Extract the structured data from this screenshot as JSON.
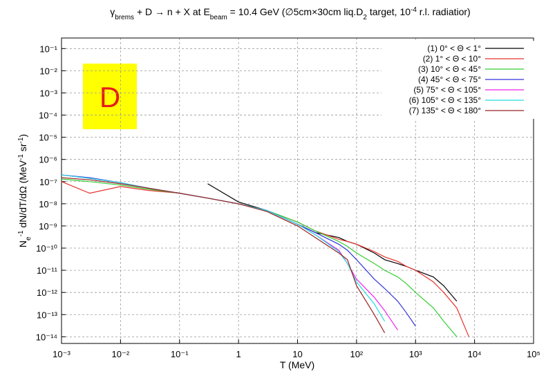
{
  "chart_data": {
    "type": "line",
    "title": [
      {
        "text": "γ"
      },
      {
        "text": "brems",
        "shift": "sub"
      },
      {
        "text": " + D → n + X   at  E"
      },
      {
        "text": "beam",
        "shift": "sub"
      },
      {
        "text": " = 10.4 GeV (∅5cm×30cm liq.D"
      },
      {
        "text": "2",
        "shift": "sub"
      },
      {
        "text": " target, 10"
      },
      {
        "text": "-4",
        "shift": "sup"
      },
      {
        "text": " r.l. radiatior)"
      }
    ],
    "x_label": "T (MeV)",
    "y_label": [
      {
        "text": "N"
      },
      {
        "text": "e",
        "shift": "sub"
      },
      {
        "text": "-1",
        "shift": "sup"
      },
      {
        "text": " dN/dT/dΩ (MeV"
      },
      {
        "text": "-1",
        "shift": "sup"
      },
      {
        "text": " sr"
      },
      {
        "text": "-1",
        "shift": "sup"
      },
      {
        "text": ")"
      }
    ],
    "annotation": "D",
    "xscale": "log",
    "yscale": "log",
    "grid": true,
    "legend": "top right",
    "xlim": [
      0.001,
      100000
    ],
    "xticks": [
      {
        "value": 0.001,
        "label": "10⁻³"
      },
      {
        "value": 0.01,
        "label": "10⁻²"
      },
      {
        "value": 0.1,
        "label": "10⁻¹"
      },
      1,
      10,
      {
        "value": 100,
        "label": "10²"
      },
      {
        "value": 1000,
        "label": "10³"
      },
      {
        "value": 10000,
        "label": "10⁴"
      },
      {
        "value": 100000,
        "label": "10⁵"
      }
    ],
    "ylim": [
      5e-15,
      0.3
    ],
    "yticks": [
      {
        "value": 0.1,
        "label": "10⁻¹"
      },
      {
        "value": 0.01,
        "label": "10⁻²"
      },
      {
        "value": 0.001,
        "label": "10⁻³"
      },
      {
        "value": 0.0001,
        "label": "10⁻⁴"
      },
      {
        "value": 1e-05,
        "label": "10⁻⁵"
      },
      {
        "value": 1e-06,
        "label": "10⁻⁶"
      },
      {
        "value": 1e-07,
        "label": "10⁻⁷"
      },
      {
        "value": 1e-08,
        "label": "10⁻⁸"
      },
      {
        "value": 1e-09,
        "label": "10⁻⁹"
      },
      {
        "value": 1e-10,
        "label": "10⁻¹⁰"
      },
      {
        "value": 1e-11,
        "label": "10⁻¹¹"
      },
      {
        "value": 1e-12,
        "label": "10⁻¹²"
      },
      {
        "value": 1e-13,
        "label": "10⁻¹³"
      },
      {
        "value": 1e-14,
        "label": "10⁻¹⁴"
      }
    ],
    "x": [
      0.001,
      0.003,
      0.01,
      0.03,
      0.1,
      0.3,
      1,
      3,
      10,
      20,
      50,
      70,
      100,
      200,
      300,
      500,
      700,
      1000,
      2000,
      3000,
      5000,
      8000
    ],
    "series": [
      {
        "name": "(1) 0° < Θ < 1°",
        "color": "#000000",
        "values": [
          null,
          null,
          null,
          null,
          null,
          8e-08,
          1.2e-08,
          5e-09,
          1.2e-09,
          5e-10,
          3e-10,
          2e-10,
          1.5e-10,
          6e-11,
          3e-11,
          2e-11,
          1.5e-11,
          1e-11,
          5e-12,
          2e-12,
          4e-13,
          null
        ]
      },
      {
        "name": "(2) 1° < Θ < 10°",
        "color": "#e8302a",
        "values": [
          1e-07,
          3e-08,
          6e-08,
          4e-08,
          3e-08,
          1.8e-08,
          1e-08,
          5e-09,
          1.5e-09,
          6e-10,
          2.5e-10,
          2e-10,
          1.5e-10,
          7e-11,
          4e-11,
          2.5e-11,
          1.5e-11,
          1e-11,
          3e-12,
          1e-12,
          2e-13,
          1e-14
        ]
      },
      {
        "name": "(3) 10° < Θ < 45°",
        "color": "#33cc33",
        "values": [
          1.3e-07,
          1e-07,
          7e-08,
          4.5e-08,
          3e-08,
          1.8e-08,
          1e-08,
          5e-09,
          1.5e-09,
          6e-10,
          2e-10,
          1.2e-10,
          6e-11,
          2e-11,
          1e-11,
          5e-12,
          2.5e-12,
          1e-12,
          2e-13,
          5e-14,
          1e-14,
          null
        ]
      },
      {
        "name": "(4) 45° < Θ < 75°",
        "color": "#3333dd",
        "values": [
          2e-07,
          1.5e-07,
          9e-08,
          5e-08,
          3e-08,
          1.8e-08,
          1e-08,
          5e-09,
          1.2e-09,
          5e-10,
          1.5e-10,
          8e-11,
          3e-11,
          4e-12,
          1.5e-12,
          4e-13,
          1.2e-13,
          3e-14,
          null,
          null,
          null,
          null
        ]
      },
      {
        "name": "(5) 75° < Θ < 105°",
        "color": "#ee22ee",
        "values": [
          2e-07,
          1.4e-07,
          9e-08,
          5e-08,
          3e-08,
          1.8e-08,
          1e-08,
          5e-09,
          1.2e-09,
          4e-10,
          8e-11,
          2e-11,
          4e-12,
          6e-13,
          1.5e-13,
          2e-14,
          null,
          null,
          null,
          null,
          null,
          null
        ]
      },
      {
        "name": "(6) 105° < Θ < 135°",
        "color": "#22dddd",
        "values": [
          2e-07,
          1.4e-07,
          9e-08,
          5e-08,
          3e-08,
          1.8e-08,
          1e-08,
          5e-09,
          1.2e-09,
          4e-10,
          7e-11,
          2e-11,
          3e-12,
          3e-13,
          5e-14,
          null,
          null,
          null,
          null,
          null,
          null,
          null
        ]
      },
      {
        "name": "(7) 135° < Θ < 180°",
        "color": "#992222",
        "values": [
          1.5e-07,
          1.2e-07,
          8e-08,
          5e-08,
          3e-08,
          1.8e-08,
          1e-08,
          4.5e-09,
          1e-09,
          3e-10,
          6e-11,
          3e-11,
          2e-12,
          1e-13,
          1.5e-14,
          null,
          null,
          null,
          null,
          null,
          null,
          null
        ]
      }
    ]
  }
}
